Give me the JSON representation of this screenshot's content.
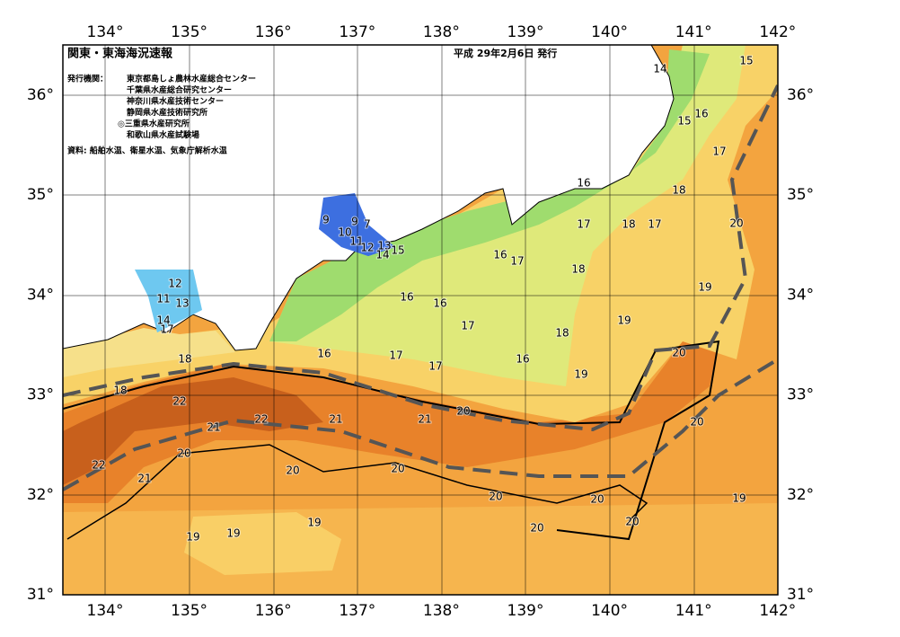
{
  "header": {
    "title": "関東・東海海況速報",
    "date": "平成 29年2月6日 発行",
    "issuers_label": "発行機関：",
    "issuers": [
      "東京都島しょ農林水産総合センター",
      "千葉県水産総合研究センター",
      "神奈川県水産技術センター",
      "静岡県水産技術研究所",
      "◎三重県水産研究所",
      "和歌山県水産試験場"
    ],
    "source": "資料: 船舶水温、衛星水温、気象庁解析水温"
  },
  "map": {
    "longitude_labels": [
      "134°",
      "135°",
      "136°",
      "137°",
      "138°",
      "139°",
      "140°",
      "141°",
      "142°"
    ],
    "latitude_labels": [
      "36°",
      "35°",
      "34°",
      "33°",
      "32°",
      "31°"
    ],
    "contour_labels": [
      14,
      15,
      15,
      16,
      17,
      16,
      18,
      17,
      18,
      17,
      20,
      9,
      9,
      7,
      10,
      11,
      12,
      13,
      14,
      15,
      16,
      17,
      18,
      12,
      11,
      13,
      14,
      17,
      16,
      16,
      17,
      19,
      19,
      18,
      16,
      17,
      17,
      16,
      19,
      20,
      18,
      18,
      22,
      22,
      21,
      21,
      21,
      20,
      20,
      22,
      20,
      20,
      20,
      21,
      20,
      20,
      19,
      20,
      20,
      19,
      19,
      19
    ]
  }
}
